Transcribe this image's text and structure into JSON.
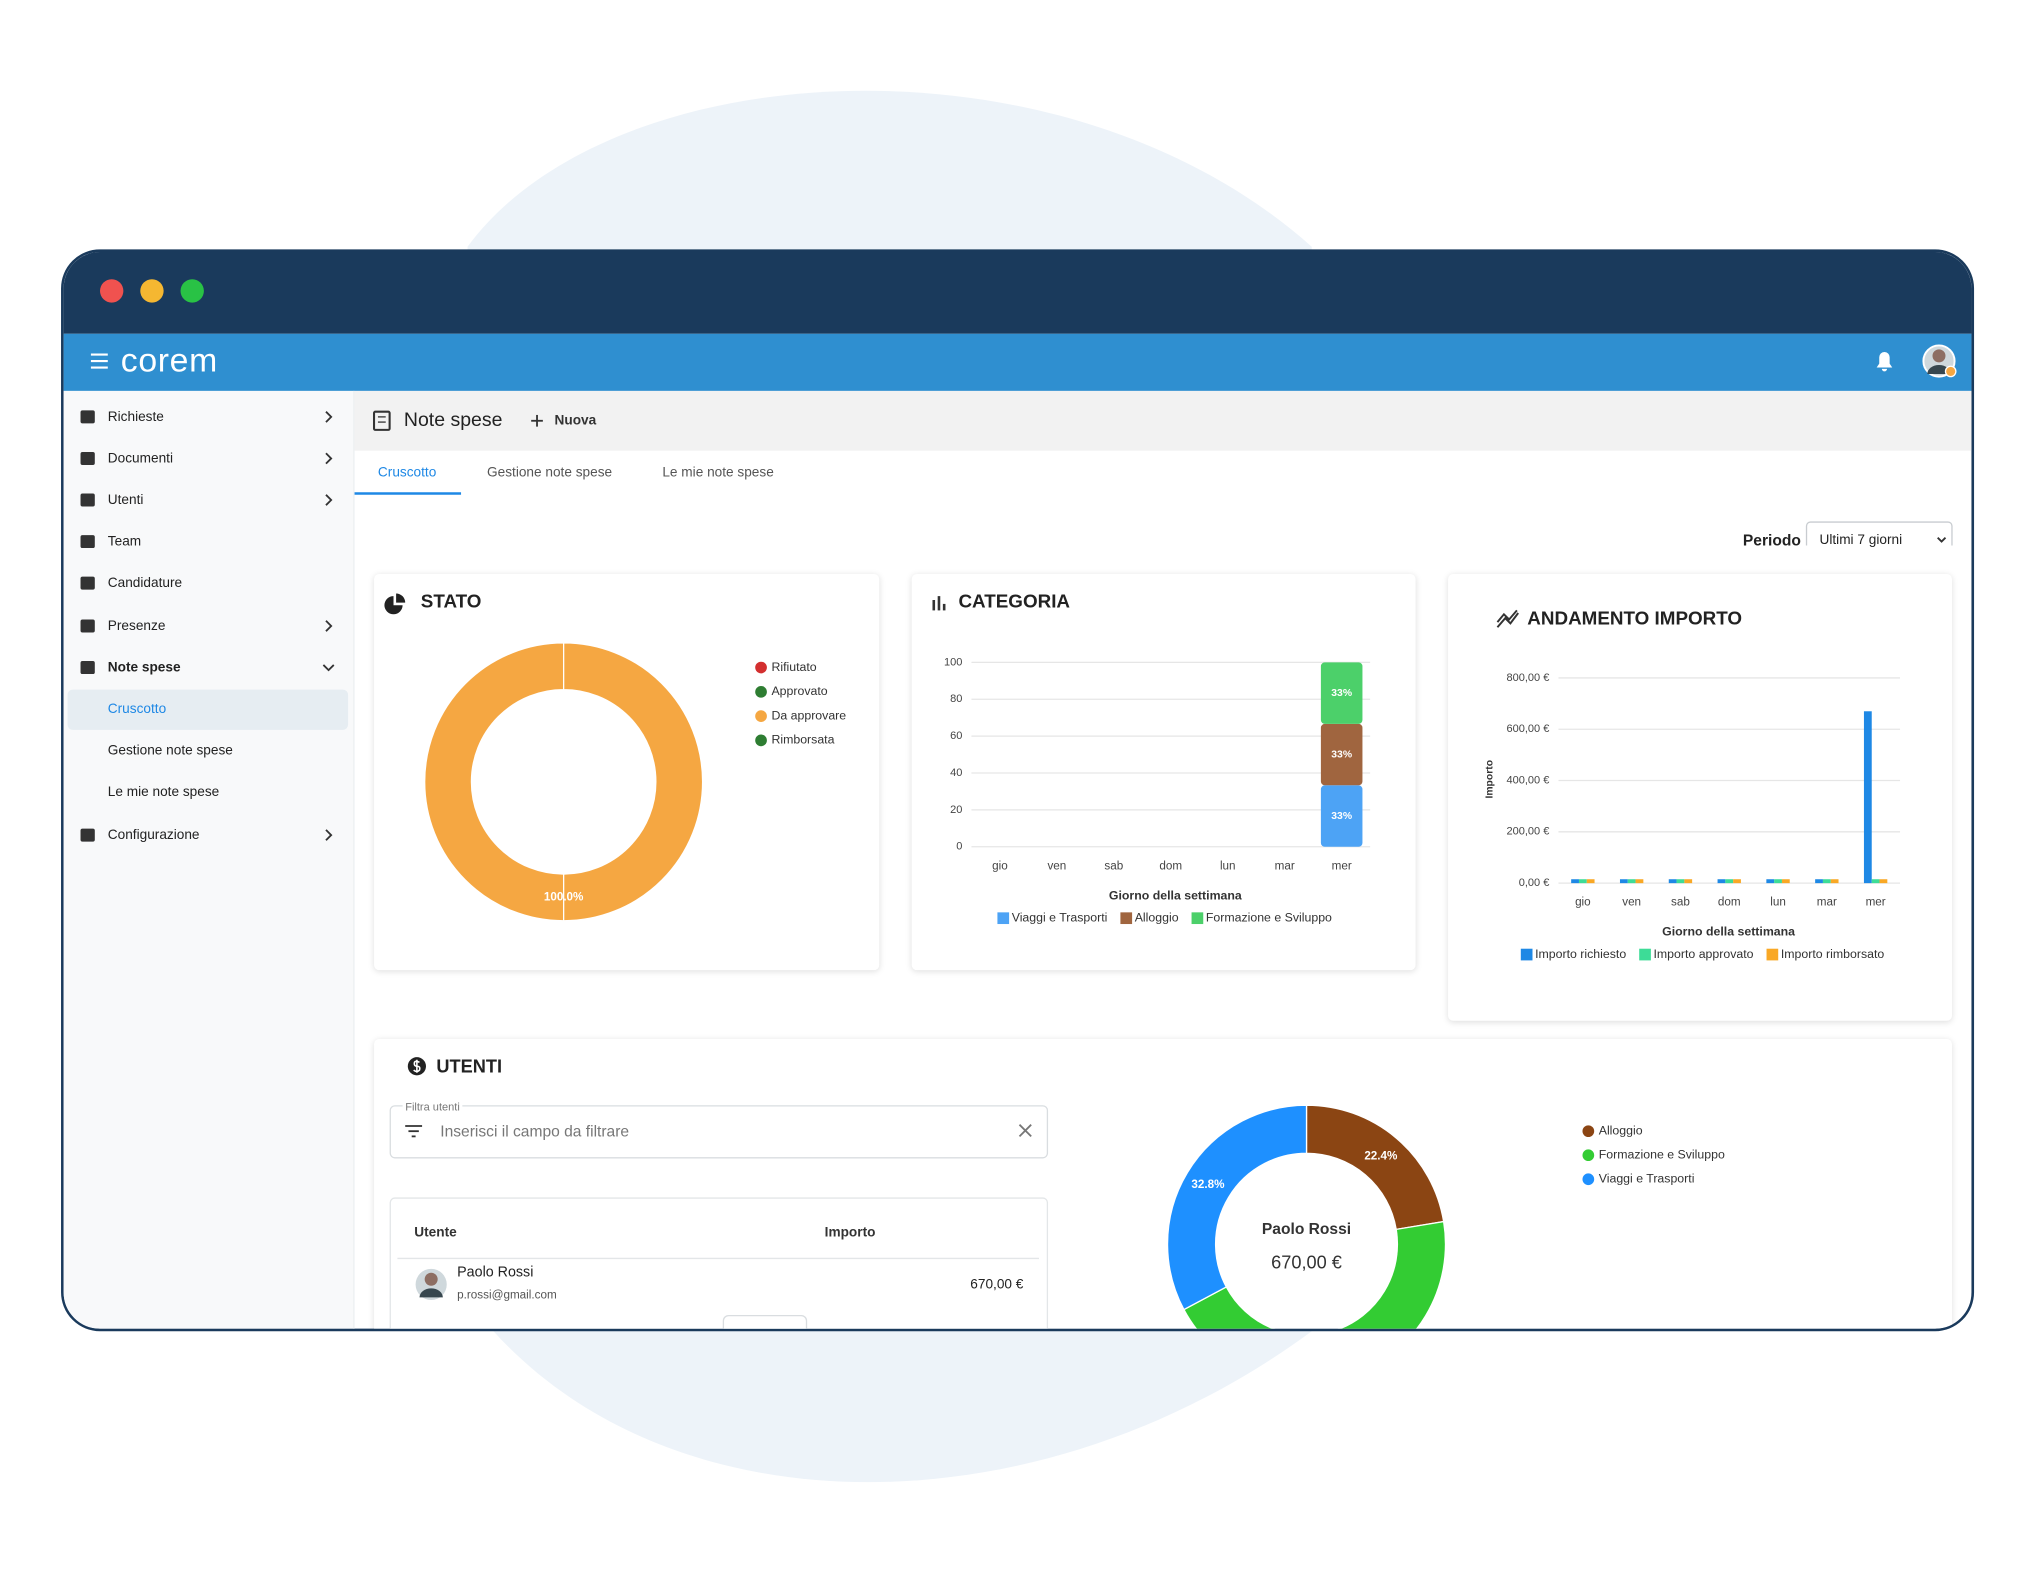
{
  "window": {
    "brand": "corem"
  },
  "sidebar": {
    "items": [
      "Richieste",
      "Documenti",
      "Utenti",
      "Team",
      "Candidature",
      "Presenze",
      "Note spese",
      "Cruscotto",
      "Gestione note spese",
      "Le mie note spese",
      "Configurazione"
    ]
  },
  "header": {
    "title": "Note spese",
    "action": "Nuova"
  },
  "tabs": [
    "Cruscotto",
    "Gestione note spese",
    "Le mie note spese"
  ],
  "filter": {
    "label": "Periodo",
    "value": "Ultimi 7 giorni"
  },
  "users_panel": {
    "title": "UTENTI",
    "filter_label": "Filtra utenti",
    "filter_placeholder": "Inserisci il campo da filtrare",
    "table": {
      "columns": [
        "Utente",
        "Importo"
      ],
      "rows": [
        {
          "name": "Paolo Rossi",
          "email": "p.rossi@gmail.com",
          "amount": "670,00 €"
        }
      ]
    }
  },
  "chart_data": [
    {
      "type": "pie",
      "title": "STATO",
      "categories": [
        "Rifiutato",
        "Approvato",
        "Da approvare",
        "Rimborsata"
      ],
      "values": [
        0,
        0,
        100,
        0
      ],
      "value_labels": [
        null,
        null,
        "100.0%",
        null
      ],
      "colors": [
        "#d32f2f",
        "#2e7d32",
        "#f5a742",
        "#2e7d32"
      ]
    },
    {
      "type": "bar",
      "title": "CATEGORIA",
      "stacked": true,
      "categories": [
        "gio",
        "ven",
        "sab",
        "dom",
        "lun",
        "mar",
        "mer"
      ],
      "series": [
        {
          "name": "Viaggi e Trasporti",
          "color": "#4da3f5",
          "values": [
            0,
            0,
            0,
            0,
            0,
            0,
            33.33
          ],
          "value_labels": [
            null,
            null,
            null,
            null,
            null,
            null,
            "33%"
          ]
        },
        {
          "name": "Alloggio",
          "color": "#a0653f",
          "values": [
            0,
            0,
            0,
            0,
            0,
            0,
            33.33
          ],
          "value_labels": [
            null,
            null,
            null,
            null,
            null,
            null,
            "33%"
          ]
        },
        {
          "name": "Formazione e Sviluppo",
          "color": "#4cd06a",
          "values": [
            0,
            0,
            0,
            0,
            0,
            0,
            33.33
          ],
          "value_labels": [
            null,
            null,
            null,
            null,
            null,
            null,
            "33%"
          ]
        }
      ],
      "xlabel": "Giorno della settimana",
      "ylim": [
        0,
        100
      ],
      "yticks": [
        0,
        20,
        40,
        60,
        80,
        100
      ],
      "grid": true
    },
    {
      "type": "bar",
      "title": "ANDAMENTO IMPORTO",
      "categories": [
        "gio",
        "ven",
        "sab",
        "dom",
        "lun",
        "mar",
        "mer"
      ],
      "series": [
        {
          "name": "Importo richiesto",
          "color": "#1e88e5",
          "values": [
            0,
            0,
            0,
            0,
            0,
            0,
            670
          ]
        },
        {
          "name": "Importo approvato",
          "color": "#3ddc97",
          "values": [
            0,
            0,
            0,
            0,
            0,
            0,
            0
          ]
        },
        {
          "name": "Importo rimborsato",
          "color": "#f9a825",
          "values": [
            0,
            0,
            0,
            0,
            0,
            0,
            0
          ]
        }
      ],
      "xlabel": "Giorno della settimana",
      "ylabel": "Importo",
      "ylim": [
        0,
        800
      ],
      "yticks": [
        {
          "value": 0,
          "label": "0,00 €"
        },
        {
          "value": 200,
          "label": "200,00 €"
        },
        {
          "value": 400,
          "label": "400,00 €"
        },
        {
          "value": 600,
          "label": "600,00 €"
        },
        {
          "value": 800,
          "label": "800,00 €"
        }
      ],
      "grid": true
    },
    {
      "type": "pie",
      "categories": [
        "Alloggio",
        "Formazione e Sviluppo",
        "Viaggi e Trasporti"
      ],
      "values": [
        22.4,
        44.8,
        32.8
      ],
      "value_labels": [
        "22.4%",
        null,
        "32.8%"
      ],
      "colors": [
        "#8b4513",
        "#33cc33",
        "#1e90ff"
      ],
      "center_title": "Paolo Rossi",
      "center_value": "670,00 €"
    }
  ]
}
